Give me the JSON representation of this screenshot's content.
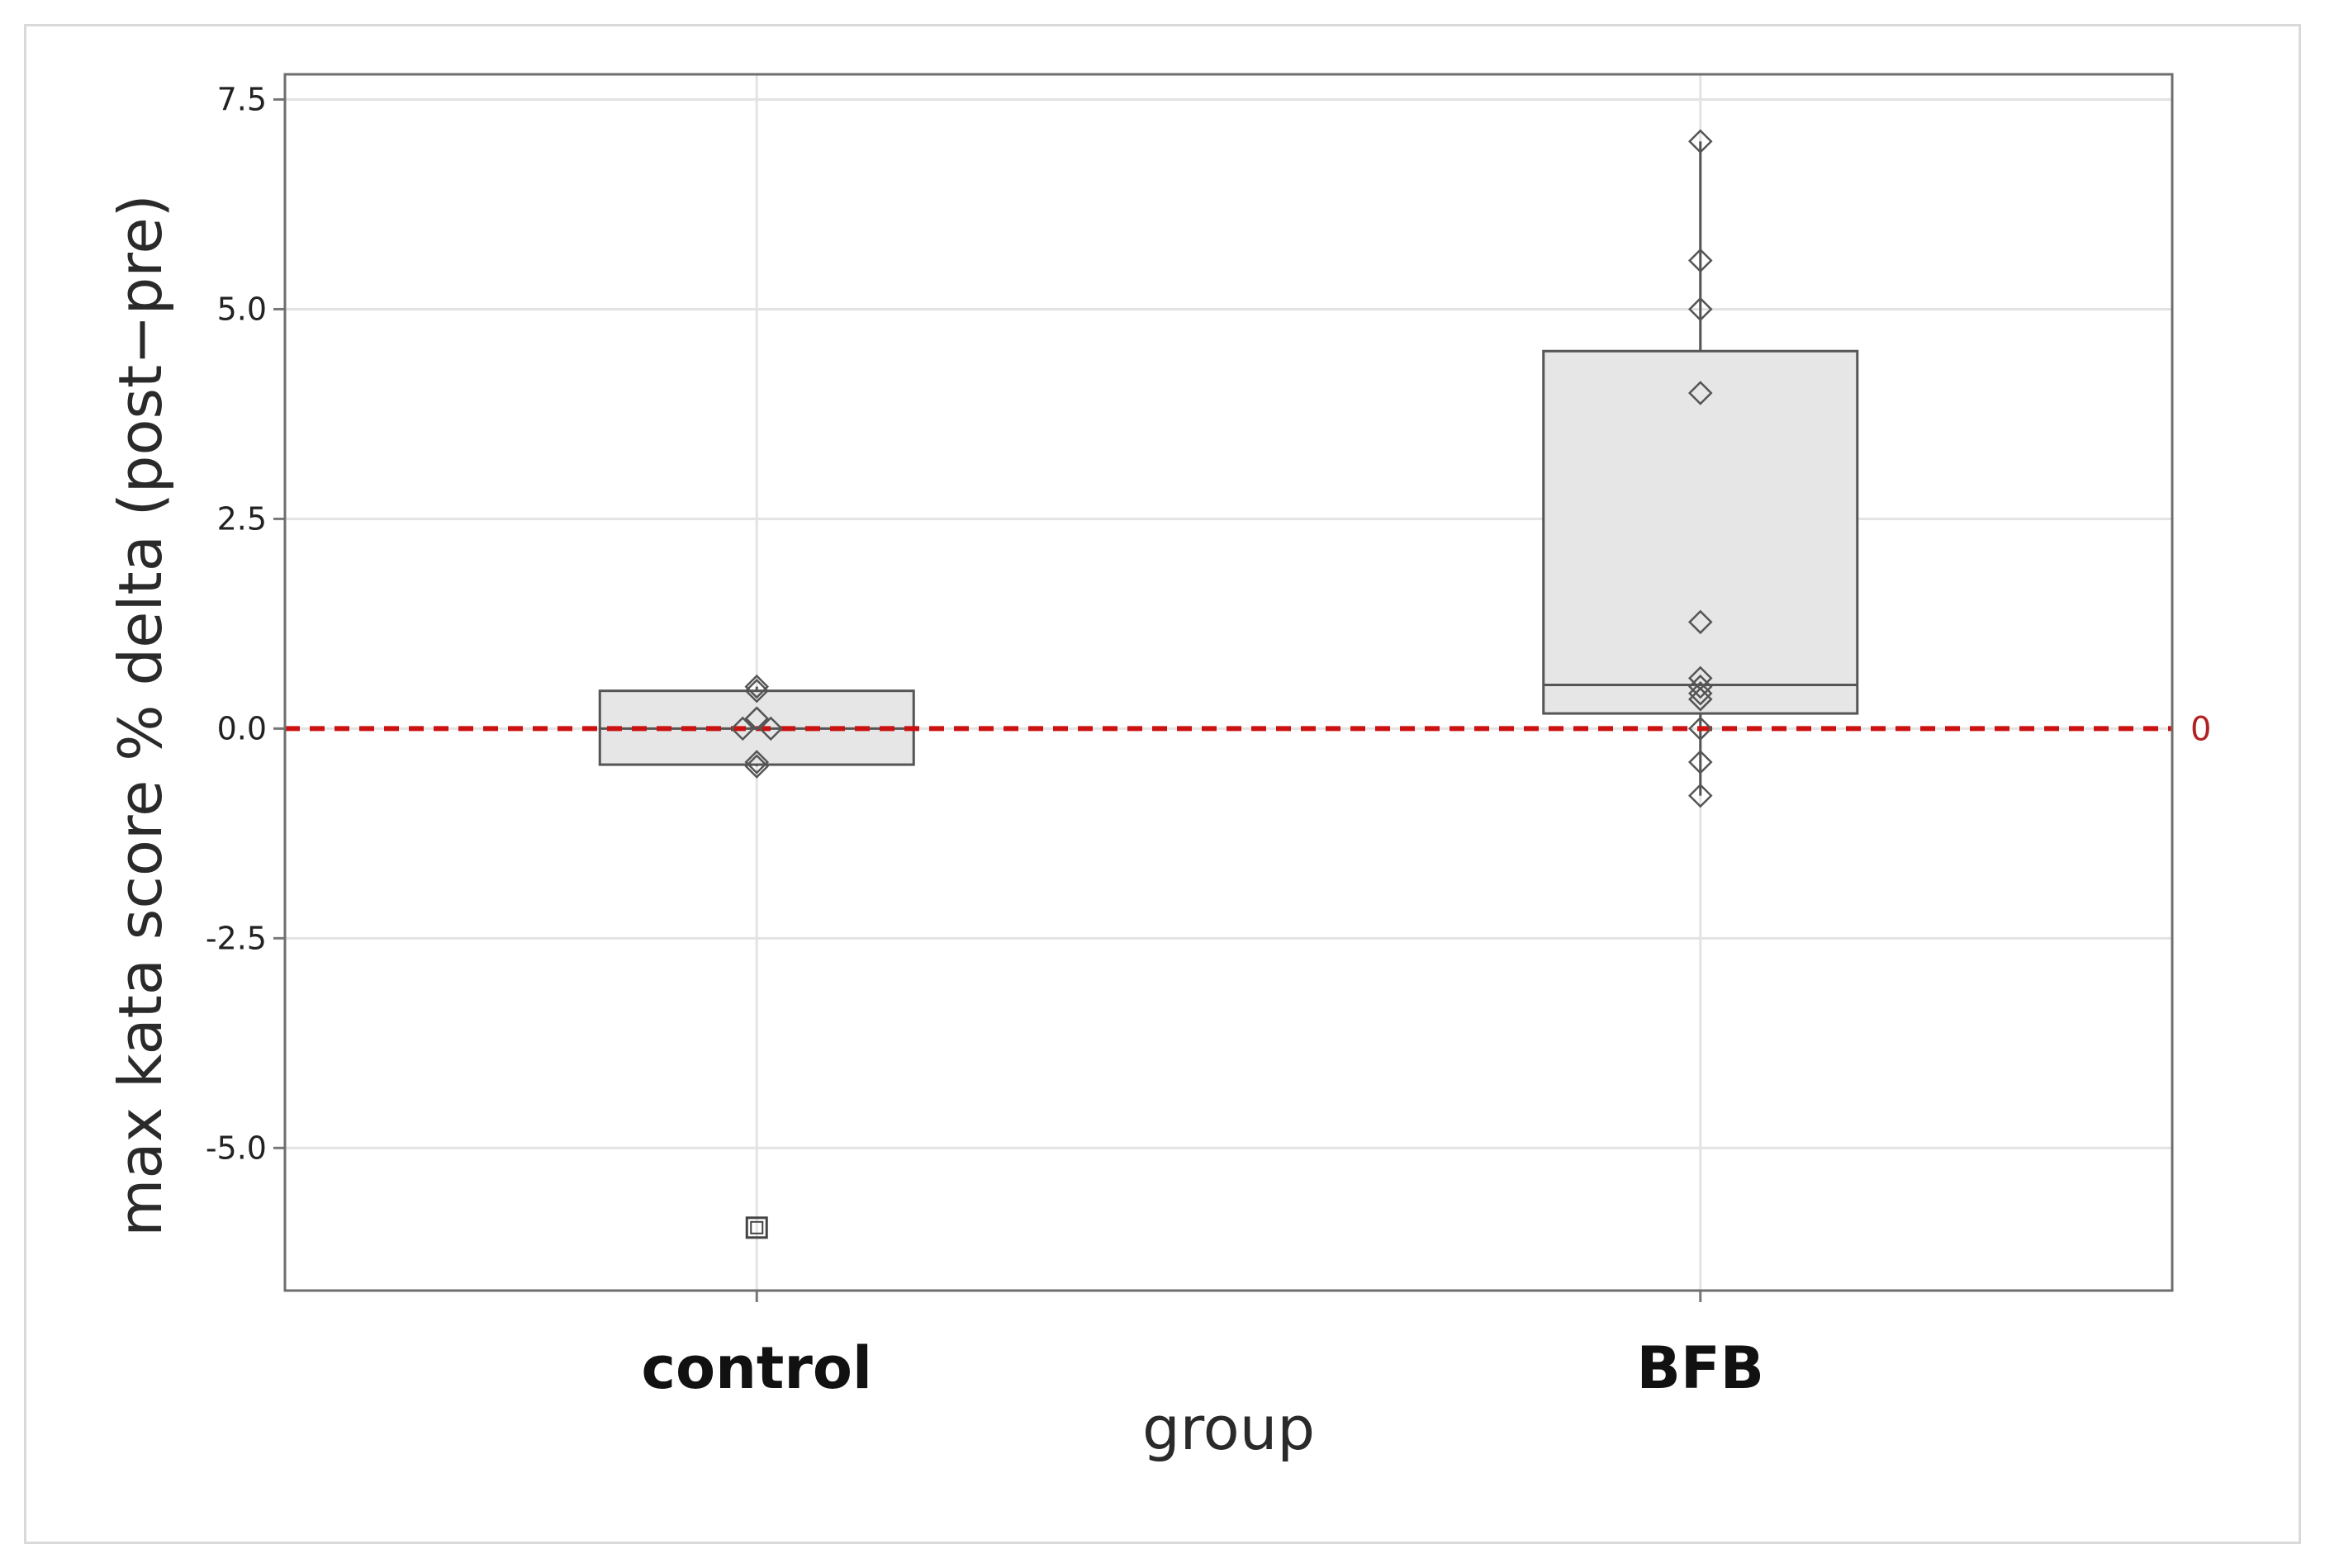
{
  "chart_data": {
    "type": "box",
    "xlabel": "group",
    "ylabel": "max kata score % delta (post−pre)",
    "categories": [
      "control",
      "BFB"
    ],
    "ylim": [
      -6.7,
      7.8
    ],
    "yticks": [
      7.5,
      5.0,
      2.5,
      0.0,
      -2.5,
      -5.0
    ],
    "ytick_labels": [
      "7.5",
      "5.0",
      "2.5",
      "0.0",
      "-2.5",
      "-5.0"
    ],
    "grid": true,
    "reference_line": {
      "value": 0,
      "label": "0",
      "color": "#cc1111",
      "style": "dashed"
    },
    "box_fill": "#e6e6e6",
    "box_stroke": "#555555",
    "boxes": [
      {
        "category": "control",
        "q1": -0.43,
        "median": 0.0,
        "q3": 0.45,
        "whisker_low": -0.45,
        "whisker_high": 0.5,
        "points": [
          0.5,
          0.45,
          0.12,
          0.0,
          0.0,
          -0.4,
          -0.45
        ],
        "point_offsets": [
          0,
          0,
          0,
          -1,
          1,
          0,
          0
        ],
        "outliers": [
          -5.95
        ]
      },
      {
        "category": "BFB",
        "q1": 0.18,
        "median": 0.52,
        "q3": 4.5,
        "whisker_low": -0.8,
        "whisker_high": 7.0,
        "points": [
          7.0,
          5.58,
          5.0,
          4.0,
          1.27,
          0.6,
          0.5,
          0.42,
          0.35,
          0.0,
          -0.4,
          -0.8
        ],
        "point_offsets": [
          0,
          0,
          0,
          0,
          0,
          0,
          0,
          0,
          0,
          0,
          0,
          0
        ],
        "outliers": []
      }
    ]
  }
}
